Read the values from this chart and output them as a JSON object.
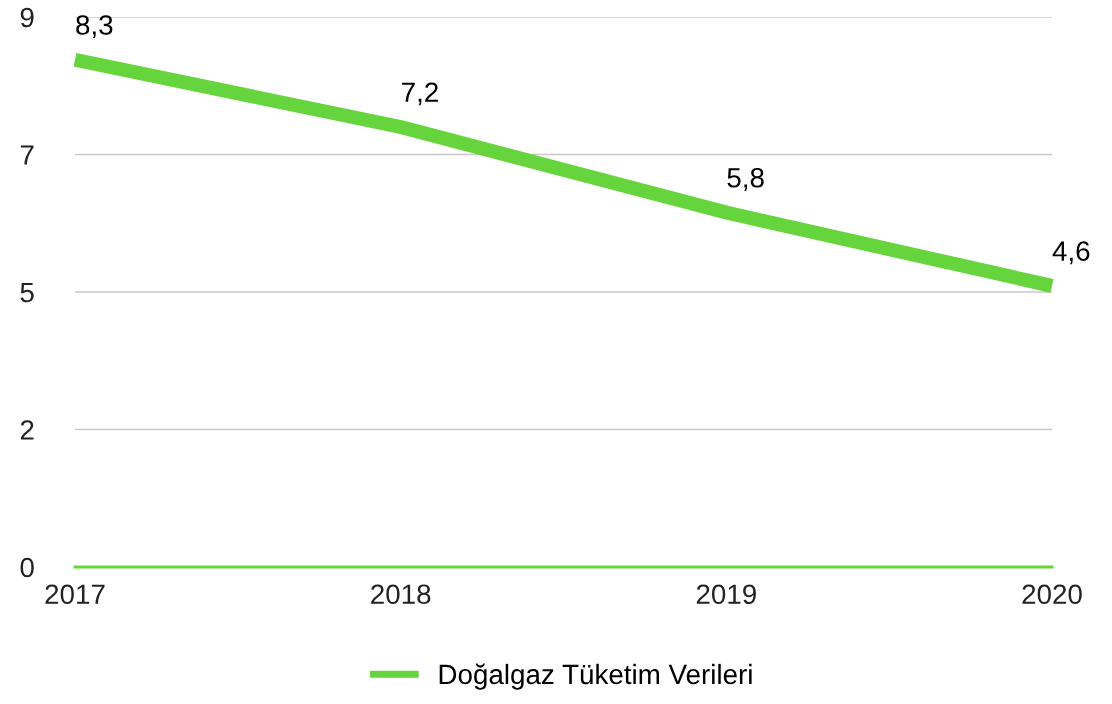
{
  "chart_data": {
    "type": "line",
    "categories": [
      "2017",
      "2018",
      "2019",
      "2020"
    ],
    "series": [
      {
        "name": "Doğalgaz Tüketim Verileri",
        "color": "#66d43c",
        "values": [
          8.3,
          7.2,
          5.8,
          4.6
        ],
        "value_labels": [
          "8,3",
          "7,2",
          "5,8",
          "4,6"
        ]
      }
    ],
    "ylim": [
      0,
      9
    ],
    "yticks": [
      0,
      {
        "value": 2.25,
        "label": "2"
      },
      {
        "value": 4.5,
        "label": "5"
      },
      {
        "value": 6.75,
        "label": "7"
      },
      9
    ],
    "grid": "y",
    "legend": "bottom",
    "marker": "none",
    "line_style": "solid"
  }
}
